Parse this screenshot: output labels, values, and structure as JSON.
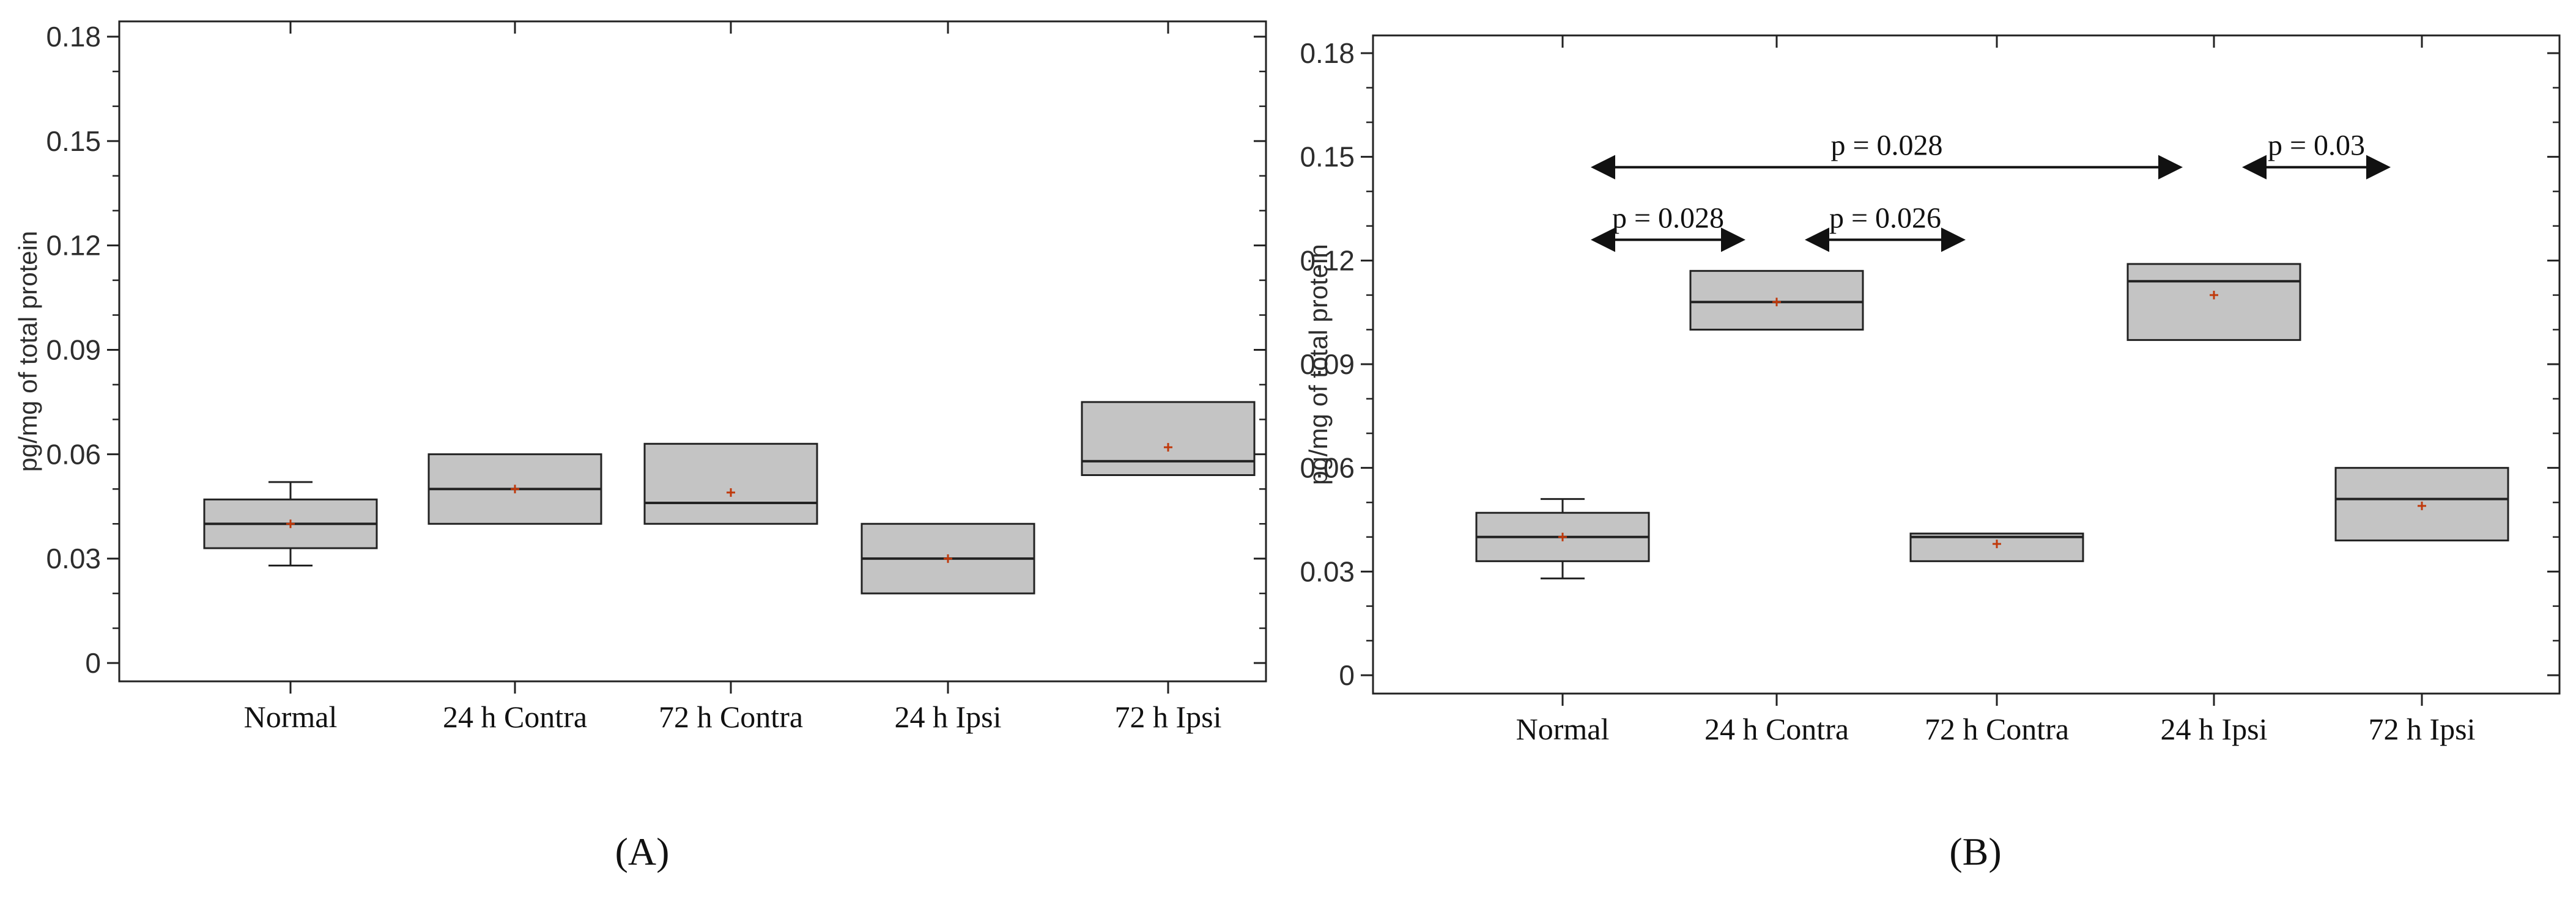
{
  "chart_data": [
    {
      "type": "box",
      "panel": "(A)",
      "ylabel": "pg/mg of total protein",
      "ylim": [
        0,
        0.18
      ],
      "yticks": [
        0,
        0.03,
        0.06,
        0.09,
        0.12,
        0.15,
        0.18
      ],
      "ytick_labels": [
        "0",
        "0.03",
        "0.06",
        "0.09",
        "0.12",
        "0.15",
        "0.18"
      ],
      "categories": [
        "Normal",
        "24 h Contra",
        "72 h Contra",
        "24 h Ipsi",
        "72 h Ipsi"
      ],
      "boxes": [
        {
          "q1": 0.033,
          "median": 0.04,
          "q3": 0.047,
          "mean": 0.04,
          "whisker_low": 0.028,
          "whisker_high": 0.052
        },
        {
          "q1": 0.04,
          "median": 0.05,
          "q3": 0.06,
          "mean": 0.05,
          "whisker_low": null,
          "whisker_high": null
        },
        {
          "q1": 0.04,
          "median": 0.046,
          "q3": 0.063,
          "mean": 0.049,
          "whisker_low": null,
          "whisker_high": null
        },
        {
          "q1": 0.02,
          "median": 0.03,
          "q3": 0.04,
          "mean": 0.03,
          "whisker_low": null,
          "whisker_high": null
        },
        {
          "q1": 0.054,
          "median": 0.058,
          "q3": 0.075,
          "mean": 0.062,
          "whisker_low": null,
          "whisker_high": null
        }
      ],
      "annotations": []
    },
    {
      "type": "box",
      "panel": "(B)",
      "ylabel": "pg/mg of total protein",
      "ylim": [
        0,
        0.18
      ],
      "yticks": [
        0,
        0.03,
        0.06,
        0.09,
        0.12,
        0.15,
        0.18
      ],
      "ytick_labels": [
        "0",
        "0.03",
        "0.06",
        "0.09",
        "0.12",
        "0.15",
        "0.18"
      ],
      "categories": [
        "Normal",
        "24 h Contra",
        "72 h Contra",
        "24 h Ipsi",
        "72 h Ipsi"
      ],
      "boxes": [
        {
          "q1": 0.033,
          "median": 0.04,
          "q3": 0.047,
          "mean": 0.04,
          "whisker_low": 0.028,
          "whisker_high": 0.051
        },
        {
          "q1": 0.1,
          "median": 0.108,
          "q3": 0.117,
          "mean": 0.108,
          "whisker_low": null,
          "whisker_high": null
        },
        {
          "q1": 0.033,
          "median": 0.04,
          "q3": 0.041,
          "mean": 0.038,
          "whisker_low": null,
          "whisker_high": null
        },
        {
          "q1": 0.097,
          "median": 0.114,
          "q3": 0.119,
          "mean": 0.11,
          "whisker_low": null,
          "whisker_high": null
        },
        {
          "q1": 0.039,
          "median": 0.051,
          "q3": 0.06,
          "mean": 0.049,
          "whisker_low": null,
          "whisker_high": null
        }
      ],
      "annotations": [
        {
          "text": "p = 0.028",
          "from": 0,
          "to": 3,
          "y": 0.147
        },
        {
          "text": "p = 0.03",
          "from": 3,
          "to": 4,
          "y": 0.147
        },
        {
          "text": "p = 0.028",
          "from": 0,
          "to": 1,
          "y": 0.126
        },
        {
          "text": "p = 0.026",
          "from": 1,
          "to": 2,
          "y": 0.126
        }
      ]
    }
  ]
}
